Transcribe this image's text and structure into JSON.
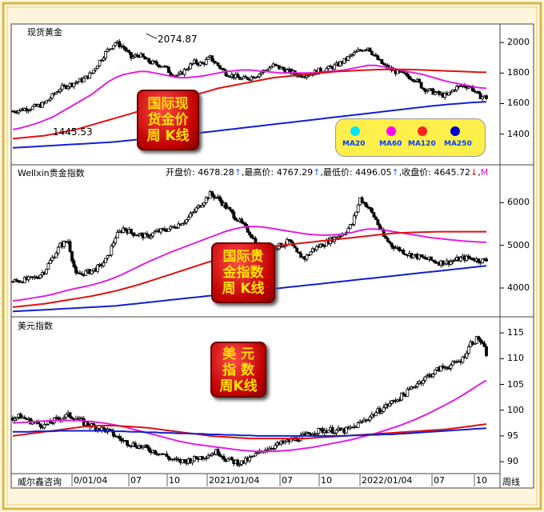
{
  "panels": [
    {
      "title": "现货黄金",
      "badge": [
        "国际现",
        "货金价",
        "周 K线"
      ],
      "high_label": "2074.87",
      "low_label": "1445.53"
    },
    {
      "title": "Wellxin贵金指数",
      "badge": [
        "国际贵",
        "金指数",
        "周 K线"
      ]
    },
    {
      "title": "美元指数",
      "badge": [
        "美 元",
        "指 数",
        "周K线"
      ]
    }
  ],
  "quote": {
    "open_label": "开盘价: 4678.28",
    "open_arrow": "↑",
    "high_label": "最高价: 4767.29",
    "high_arrow": "↑",
    "low_label": "最低价: 4496.05",
    "low_arrow": "↑",
    "close_label": "收盘价: 4645.72",
    "close_arrow": "↓",
    "trail": "M"
  },
  "legend": [
    {
      "label": "MA20",
      "color": "#00e5ff"
    },
    {
      "label": "MA60",
      "color": "#ff00ff"
    },
    {
      "label": "MA120",
      "color": "#ff0000"
    },
    {
      "label": "MA250",
      "color": "#0000cc"
    }
  ],
  "footer": {
    "source": "威尔鑫咨询",
    "period": "周线"
  },
  "chart_data": [
    {
      "type": "candlestick",
      "title": "现货黄金",
      "x_ticks": [
        "0/01/04",
        "07",
        "10",
        "2021/01/04",
        "07",
        "10",
        "2022/01/04",
        "07",
        "10"
      ],
      "y_ticks": [
        2000,
        1800,
        1600,
        1400
      ],
      "ylim": [
        1220,
        2090
      ],
      "annotations": [
        "2074.87",
        "1445.53"
      ],
      "close_profile": [
        1550,
        1560,
        1570,
        1580,
        1600,
        1650,
        1700,
        1720,
        1740,
        1760,
        1800,
        1880,
        1950,
        2000,
        1970,
        1900,
        1920,
        1880,
        1860,
        1850,
        1800,
        1780,
        1830,
        1870,
        1860,
        1900,
        1850,
        1800,
        1780,
        1760,
        1770,
        1790,
        1820,
        1850,
        1830,
        1810,
        1790,
        1790,
        1800,
        1820,
        1830,
        1850,
        1880,
        1920,
        1950,
        1970,
        1900,
        1850,
        1820,
        1800,
        1780,
        1760,
        1700,
        1680,
        1660,
        1650,
        1700,
        1720,
        1710,
        1650,
        1640
      ],
      "series": [
        {
          "name": "MA20",
          "values": [
            1540,
            1550,
            1560,
            1575,
            1600,
            1640,
            1690,
            1720,
            1750,
            1780,
            1820,
            1880,
            1940,
            1980,
            1970,
            1920,
            1900,
            1880,
            1860,
            1850,
            1820,
            1800,
            1820,
            1850,
            1850,
            1870,
            1850,
            1820,
            1790,
            1770,
            1770,
            1790,
            1810,
            1840,
            1830,
            1810,
            1800,
            1790,
            1800,
            1820,
            1830,
            1850,
            1880,
            1910,
            1940,
            1950,
            1910,
            1860,
            1830,
            1810,
            1790,
            1770,
            1720,
            1690,
            1670,
            1660,
            1690,
            1710,
            1700,
            1670,
            1660
          ]
        },
        {
          "name": "MA60",
          "values": [
            1430,
            1440,
            1455,
            1470,
            1490,
            1510,
            1540,
            1570,
            1600,
            1630,
            1660,
            1700,
            1740,
            1770,
            1790,
            1800,
            1810,
            1810,
            1800,
            1790,
            1780,
            1770,
            1770,
            1775,
            1780,
            1790,
            1800,
            1810,
            1815,
            1820,
            1820,
            1815,
            1810,
            1805,
            1800,
            1800,
            1800,
            1800,
            1800,
            1805,
            1810,
            1815,
            1820,
            1830,
            1840,
            1850,
            1850,
            1840,
            1830,
            1820,
            1810,
            1800,
            1790,
            1775,
            1760,
            1745,
            1735,
            1725,
            1715,
            1705,
            1700
          ]
        },
        {
          "name": "MA120",
          "values": [
            1370,
            1375,
            1380,
            1385,
            1390,
            1400,
            1410,
            1420,
            1430,
            1445,
            1460,
            1475,
            1490,
            1505,
            1520,
            1535,
            1550,
            1565,
            1580,
            1595,
            1610,
            1625,
            1640,
            1655,
            1670,
            1685,
            1700,
            1710,
            1720,
            1730,
            1740,
            1750,
            1760,
            1770,
            1775,
            1780,
            1785,
            1790,
            1795,
            1800,
            1805,
            1810,
            1812,
            1815,
            1818,
            1820,
            1822,
            1823,
            1824,
            1824,
            1823,
            1822,
            1820,
            1818,
            1816,
            1814,
            1812,
            1810,
            1808,
            1806,
            1805
          ]
        },
        {
          "name": "MA250",
          "values": [
            1310,
            1313,
            1316,
            1319,
            1322,
            1325,
            1328,
            1331,
            1334,
            1337,
            1340,
            1343,
            1346,
            1350,
            1355,
            1360,
            1365,
            1370,
            1375,
            1380,
            1386,
            1392,
            1398,
            1404,
            1410,
            1416,
            1422,
            1428,
            1434,
            1440,
            1446,
            1452,
            1458,
            1464,
            1470,
            1476,
            1482,
            1488,
            1494,
            1500,
            1506,
            1512,
            1518,
            1524,
            1530,
            1536,
            1542,
            1548,
            1554,
            1560,
            1566,
            1572,
            1578,
            1584,
            1589,
            1594,
            1598,
            1602,
            1606,
            1609,
            1612
          ]
        }
      ]
    },
    {
      "type": "candlestick",
      "title": "Wellxin贵金指数",
      "y_ticks": [
        6000,
        5000,
        4000
      ],
      "ylim": [
        3400,
        6700
      ],
      "close_profile": [
        4150,
        4180,
        4200,
        4250,
        4400,
        4700,
        5000,
        5100,
        4300,
        4350,
        4400,
        4500,
        4700,
        5200,
        5400,
        5300,
        5250,
        5200,
        5300,
        5350,
        5400,
        5500,
        5600,
        5800,
        6000,
        6200,
        6100,
        5900,
        5700,
        5500,
        5300,
        5000,
        4900,
        4950,
        5000,
        5100,
        4800,
        4700,
        4900,
        5000,
        5100,
        5200,
        5300,
        5500,
        6100,
        5900,
        5600,
        5200,
        5000,
        4900,
        4800,
        4750,
        4700,
        4650,
        4600,
        4600,
        4650,
        4700,
        4700,
        4650,
        4645
      ],
      "series": [
        {
          "name": "MA20",
          "values": [
            4150,
            4170,
            4200,
            4260,
            4380,
            4600,
            4850,
            4950,
            4600,
            4450,
            4450,
            4500,
            4650,
            5000,
            5250,
            5300,
            5280,
            5250,
            5280,
            5320,
            5380,
            5480,
            5580,
            5750,
            5920,
            6050,
            6050,
            5920,
            5750,
            5550,
            5350,
            5100,
            4980,
            4960,
            4990,
            5050,
            4900,
            4800,
            4880,
            4980,
            5080,
            5180,
            5280,
            5450,
            5800,
            5800,
            5620,
            5300,
            5100,
            4950,
            4850,
            4780,
            4720,
            4680,
            4640,
            4620,
            4640,
            4680,
            4690,
            4670,
            4660
          ]
        },
        {
          "name": "MA60",
          "values": [
            3700,
            3720,
            3750,
            3780,
            3810,
            3850,
            3900,
            3950,
            3990,
            4030,
            4070,
            4120,
            4180,
            4250,
            4330,
            4420,
            4510,
            4600,
            4680,
            4760,
            4840,
            4910,
            4980,
            5050,
            5120,
            5190,
            5260,
            5330,
            5380,
            5420,
            5440,
            5440,
            5420,
            5390,
            5360,
            5330,
            5300,
            5270,
            5250,
            5240,
            5240,
            5250,
            5270,
            5300,
            5350,
            5380,
            5380,
            5360,
            5330,
            5300,
            5270,
            5240,
            5210,
            5180,
            5160,
            5140,
            5120,
            5100,
            5090,
            5080,
            5070
          ]
        },
        {
          "name": "MA120",
          "values": [
            3550,
            3570,
            3590,
            3610,
            3630,
            3660,
            3690,
            3720,
            3750,
            3780,
            3810,
            3850,
            3890,
            3930,
            3980,
            4030,
            4080,
            4140,
            4200,
            4260,
            4320,
            4380,
            4440,
            4500,
            4560,
            4620,
            4680,
            4740,
            4790,
            4840,
            4880,
            4920,
            4950,
            4980,
            5000,
            5020,
            5040,
            5060,
            5080,
            5100,
            5120,
            5140,
            5160,
            5180,
            5200,
            5220,
            5240,
            5260,
            5280,
            5290,
            5300,
            5305,
            5310,
            5315,
            5320,
            5320,
            5320,
            5320,
            5320,
            5320,
            5320
          ]
        },
        {
          "name": "MA250",
          "values": [
            3450,
            3460,
            3470,
            3480,
            3490,
            3500,
            3510,
            3520,
            3530,
            3540,
            3550,
            3560,
            3570,
            3580,
            3600,
            3620,
            3640,
            3660,
            3680,
            3700,
            3720,
            3740,
            3760,
            3780,
            3800,
            3820,
            3840,
            3860,
            3880,
            3900,
            3920,
            3940,
            3960,
            3980,
            4000,
            4020,
            4040,
            4060,
            4080,
            4100,
            4120,
            4140,
            4160,
            4180,
            4200,
            4220,
            4240,
            4260,
            4280,
            4300,
            4320,
            4340,
            4360,
            4380,
            4400,
            4420,
            4440,
            4460,
            4480,
            4500,
            4520
          ]
        }
      ]
    },
    {
      "type": "candlestick",
      "title": "美元指数",
      "y_ticks": [
        115,
        110,
        105,
        100,
        95,
        90
      ],
      "ylim": [
        88,
        117.5
      ],
      "close_profile": [
        98.5,
        98.8,
        98.0,
        97.5,
        97.0,
        97.8,
        98.5,
        99.0,
        98.5,
        97.5,
        97.0,
        96.5,
        96.0,
        95.0,
        94.0,
        93.5,
        93.0,
        92.5,
        92.0,
        91.5,
        90.5,
        90.0,
        90.2,
        90.5,
        91.0,
        91.5,
        92.0,
        90.5,
        90.0,
        89.8,
        90.5,
        91.5,
        92.5,
        93.0,
        93.5,
        94.0,
        94.5,
        95.0,
        95.8,
        96.0,
        96.2,
        96.0,
        96.0,
        96.5,
        97.5,
        98.5,
        99.5,
        100.5,
        101.5,
        102.5,
        103.5,
        105.0,
        106.0,
        107.0,
        108.0,
        108.5,
        109.0,
        110.0,
        113.0,
        114.0,
        111.0
      ],
      "series": [
        {
          "name": "MA20",
          "values": [
            98.5,
            98.6,
            98.4,
            98.0,
            97.6,
            97.6,
            98.0,
            98.4,
            98.4,
            97.9,
            97.4,
            96.9,
            96.3,
            95.5,
            94.6,
            94.0,
            93.5,
            93.0,
            92.5,
            92.0,
            91.3,
            90.7,
            90.5,
            90.6,
            90.9,
            91.3,
            91.6,
            91.0,
            90.5,
            90.2,
            90.6,
            91.3,
            92.1,
            92.7,
            93.2,
            93.7,
            94.2,
            94.7,
            95.3,
            95.7,
            96.0,
            96.0,
            96.0,
            96.3,
            97.0,
            97.9,
            98.8,
            99.8,
            100.8,
            101.8,
            102.8,
            104.0,
            105.2,
            106.2,
            107.2,
            108.0,
            108.6,
            109.4,
            111.2,
            112.6,
            112.2
          ]
        },
        {
          "name": "MA60",
          "values": [
            97.5,
            97.6,
            97.7,
            97.8,
            97.9,
            98.0,
            98.0,
            98.0,
            98.0,
            97.9,
            97.8,
            97.6,
            97.4,
            97.1,
            96.8,
            96.4,
            96.0,
            95.6,
            95.2,
            94.8,
            94.4,
            94.0,
            93.7,
            93.4,
            93.2,
            93.0,
            92.8,
            92.6,
            92.4,
            92.2,
            92.1,
            92.0,
            92.0,
            92.0,
            92.1,
            92.2,
            92.4,
            92.6,
            92.8,
            93.1,
            93.4,
            93.7,
            94.0,
            94.3,
            94.7,
            95.1,
            95.5,
            96.0,
            96.5,
            97.0,
            97.6,
            98.2,
            98.9,
            99.6,
            100.4,
            101.2,
            102.0,
            102.9,
            103.9,
            104.9,
            105.8
          ]
        },
        {
          "name": "MA120",
          "values": [
            95.0,
            95.2,
            95.4,
            95.6,
            95.8,
            96.0,
            96.2,
            96.4,
            96.6,
            96.8,
            96.9,
            97.0,
            97.0,
            97.0,
            96.9,
            96.8,
            96.7,
            96.6,
            96.4,
            96.2,
            96.0,
            95.8,
            95.6,
            95.4,
            95.2,
            95.0,
            94.9,
            94.8,
            94.7,
            94.6,
            94.5,
            94.5,
            94.5,
            94.5,
            94.5,
            94.5,
            94.5,
            94.5,
            94.6,
            94.7,
            94.8,
            94.9,
            95.0,
            95.1,
            95.2,
            95.3,
            95.4,
            95.5,
            95.6,
            95.7,
            95.8,
            95.9,
            96.0,
            96.1,
            96.2,
            96.3,
            96.5,
            96.7,
            96.9,
            97.1,
            97.3
          ]
        },
        {
          "name": "MA250",
          "values": [
            95.8,
            95.8,
            95.8,
            95.9,
            95.9,
            95.9,
            96.0,
            96.0,
            96.0,
            96.0,
            96.0,
            96.0,
            96.0,
            95.9,
            95.9,
            95.8,
            95.8,
            95.7,
            95.7,
            95.6,
            95.6,
            95.5,
            95.5,
            95.4,
            95.4,
            95.3,
            95.3,
            95.2,
            95.2,
            95.1,
            95.1,
            95.0,
            95.0,
            95.0,
            95.0,
            95.0,
            95.0,
            95.0,
            95.0,
            95.0,
            95.0,
            95.0,
            95.0,
            95.1,
            95.1,
            95.2,
            95.2,
            95.3,
            95.3,
            95.4,
            95.5,
            95.6,
            95.7,
            95.8,
            95.9,
            96.0,
            96.1,
            96.2,
            96.3,
            96.4,
            96.5
          ]
        }
      ]
    }
  ]
}
